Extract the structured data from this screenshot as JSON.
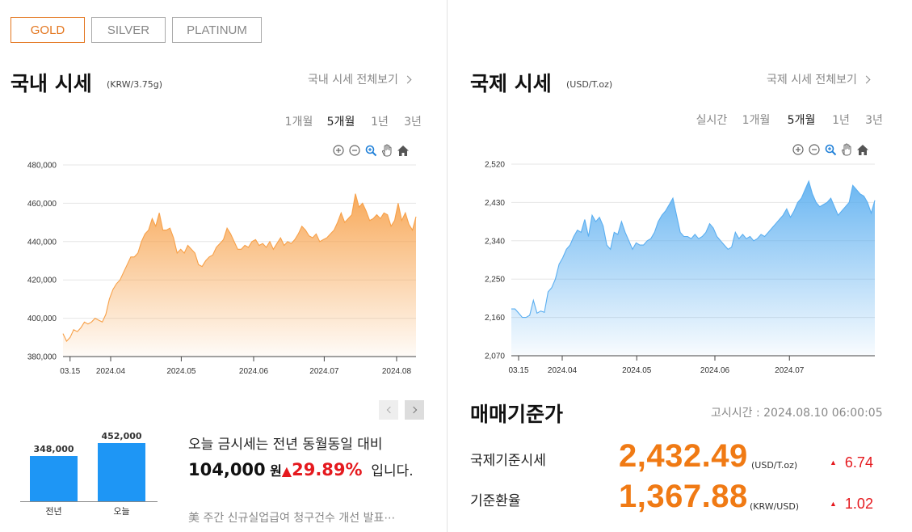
{
  "metal_tabs": [
    {
      "label": "GOLD",
      "active": true
    },
    {
      "label": "SILVER",
      "active": false
    },
    {
      "label": "PLATINUM",
      "active": false
    }
  ],
  "domestic": {
    "title": "국내 시세",
    "unit": "(KRW/3.75g)",
    "view_all": "국내 시세 전체보기",
    "periods": [
      "1개월",
      "5개월",
      "1년",
      "3년"
    ],
    "active_period": "5개월"
  },
  "international": {
    "title": "국제 시세",
    "unit": "(USD/T.oz)",
    "view_all": "국제 시세 전체보기",
    "periods": [
      "실시간",
      "1개월",
      "5개월",
      "1년",
      "3년"
    ],
    "active_period": "5개월"
  },
  "chart_tools": [
    "zoom-in-icon",
    "zoom-out-icon",
    "magnifier-icon",
    "pan-hand-icon",
    "home-icon"
  ],
  "chart_data": [
    {
      "type": "area",
      "series_color": "#f7a048",
      "y_ticks": [
        "480,000",
        "460,000",
        "440,000",
        "420,000",
        "400,000",
        "380,000"
      ],
      "ylim": [
        380000,
        480000
      ],
      "x_ticks": [
        "03.15",
        "2024.04",
        "2024.05",
        "2024.06",
        "2024.07",
        "2024.08"
      ],
      "x_tick_pos": [
        0.02,
        0.135,
        0.335,
        0.54,
        0.74,
        0.945
      ],
      "grid": true,
      "values": [
        392000,
        388000,
        390000,
        394000,
        393000,
        395000,
        398000,
        397000,
        398000,
        400000,
        399000,
        398000,
        402000,
        410000,
        415000,
        418000,
        420000,
        424000,
        428000,
        432000,
        432000,
        434000,
        440000,
        444000,
        446000,
        452000,
        448000,
        455000,
        446000,
        446000,
        447000,
        442000,
        434000,
        436000,
        434000,
        438000,
        436000,
        434000,
        428000,
        427000,
        430000,
        432000,
        433000,
        437000,
        439000,
        441000,
        447000,
        444000,
        440000,
        436000,
        436000,
        438000,
        437000,
        440000,
        441000,
        438000,
        439000,
        437000,
        440000,
        436000,
        439000,
        442000,
        438000,
        440000,
        439000,
        441000,
        444000,
        448000,
        446000,
        443000,
        442000,
        444000,
        440000,
        441000,
        442000,
        444000,
        446000,
        450000,
        455000,
        450000,
        452000,
        454000,
        465000,
        458000,
        460000,
        456000,
        451000,
        452000,
        454000,
        452000,
        455000,
        454000,
        448000,
        451000,
        460000,
        451000,
        455000,
        449000,
        446000,
        453000
      ]
    },
    {
      "type": "area",
      "series_color": "#5aaef0",
      "y_ticks": [
        "2,520",
        "2,430",
        "2,340",
        "2,250",
        "2,160",
        "2,070"
      ],
      "ylim": [
        2070,
        2520
      ],
      "x_ticks": [
        "03.15",
        "2024.04",
        "2024.05",
        "2024.06",
        "2024.07"
      ],
      "x_tick_pos": [
        0.02,
        0.14,
        0.345,
        0.56,
        0.765
      ],
      "grid": true,
      "values": [
        2180,
        2180,
        2170,
        2160,
        2160,
        2165,
        2200,
        2170,
        2175,
        2172,
        2220,
        2230,
        2250,
        2285,
        2300,
        2320,
        2330,
        2350,
        2365,
        2360,
        2390,
        2350,
        2400,
        2385,
        2395,
        2375,
        2330,
        2320,
        2360,
        2355,
        2385,
        2360,
        2340,
        2320,
        2335,
        2330,
        2330,
        2340,
        2345,
        2360,
        2385,
        2400,
        2410,
        2425,
        2440,
        2400,
        2360,
        2350,
        2350,
        2345,
        2355,
        2345,
        2350,
        2360,
        2380,
        2370,
        2350,
        2340,
        2330,
        2320,
        2325,
        2360,
        2345,
        2355,
        2345,
        2350,
        2340,
        2345,
        2355,
        2350,
        2360,
        2370,
        2380,
        2390,
        2400,
        2415,
        2395,
        2410,
        2430,
        2440,
        2460,
        2480,
        2450,
        2430,
        2420,
        2425,
        2430,
        2440,
        2420,
        2400,
        2410,
        2420,
        2430,
        2470,
        2460,
        2450,
        2445,
        2430,
        2405,
        2435
      ]
    }
  ],
  "pager": {
    "prev": "prev-arrow-icon",
    "next": "next-arrow-icon"
  },
  "mini_bars": {
    "ylim": [
      0,
      500000
    ],
    "bars": [
      {
        "label": "전년",
        "value_label": "348,000",
        "value": 348000
      },
      {
        "label": "오늘",
        "value_label": "452,000",
        "value": 452000
      }
    ]
  },
  "compare": {
    "line1": "오늘 금시세는 전년 동월동일 대비",
    "amount": "104,000",
    "won": "원",
    "arrow": "▲",
    "percent": "29.89%",
    "suffix": "입니다."
  },
  "news": "美 주간 신규실업급여 청구건수 개선 발표⋯",
  "base_price": {
    "title": "매매기준가",
    "notice_time": "고시시간 : 2024.08.10 06:00:05",
    "rows": [
      {
        "label": "국제기준시세",
        "value": "2,432.49",
        "unit": "(USD/T.oz)",
        "arrow": "▲",
        "change": "6.74"
      },
      {
        "label": "기준환율",
        "value": "1,367.88",
        "unit": "(KRW/USD)",
        "arrow": "▲",
        "change": "1.02"
      }
    ]
  }
}
